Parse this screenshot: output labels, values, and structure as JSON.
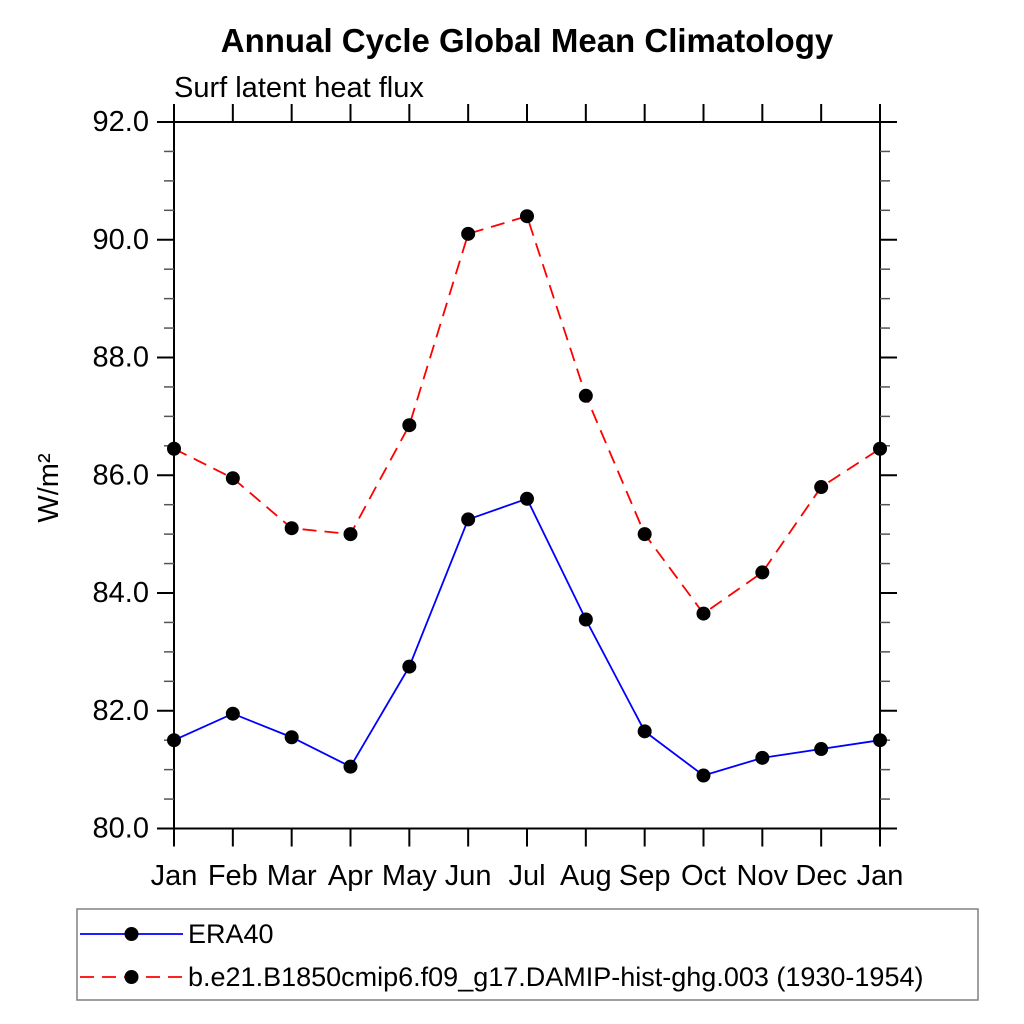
{
  "chart_data": {
    "type": "line",
    "title": "Annual Cycle Global Mean Climatology",
    "subtitle": "Surf latent heat flux",
    "ylabel": "W/m²",
    "xlabel": "",
    "categories": [
      "Jan",
      "Feb",
      "Mar",
      "Apr",
      "May",
      "Jun",
      "Jul",
      "Aug",
      "Sep",
      "Oct",
      "Nov",
      "Dec",
      "Jan"
    ],
    "series": [
      {
        "name": "ERA40",
        "color": "#0000ff",
        "line_style": "solid",
        "marker": "circle",
        "marker_color": "#000000",
        "values": [
          81.5,
          81.95,
          81.55,
          81.05,
          82.75,
          85.25,
          85.6,
          83.55,
          81.65,
          80.9,
          81.2,
          81.35,
          81.5
        ]
      },
      {
        "name": "b.e21.B1850cmip6.f09_g17.DAMIP-hist-ghg.003 (1930-1954)",
        "color": "#ff0000",
        "line_style": "dashed",
        "marker": "circle",
        "marker_color": "#000000",
        "values": [
          86.45,
          85.95,
          85.1,
          85.0,
          86.85,
          90.1,
          90.4,
          87.35,
          85.0,
          83.65,
          84.35,
          85.8,
          86.45
        ]
      }
    ],
    "ylim": [
      80.0,
      92.0
    ],
    "y_major_ticks": [
      "80.0",
      "82.0",
      "84.0",
      "86.0",
      "88.0",
      "90.0",
      "92.0"
    ],
    "y_minor_step": 0.5,
    "grid": false,
    "frame": "box",
    "tick_direction": "out",
    "legend_position": "bottom-left",
    "axis_color": "#000000",
    "minor_tick_color": "#555555"
  }
}
